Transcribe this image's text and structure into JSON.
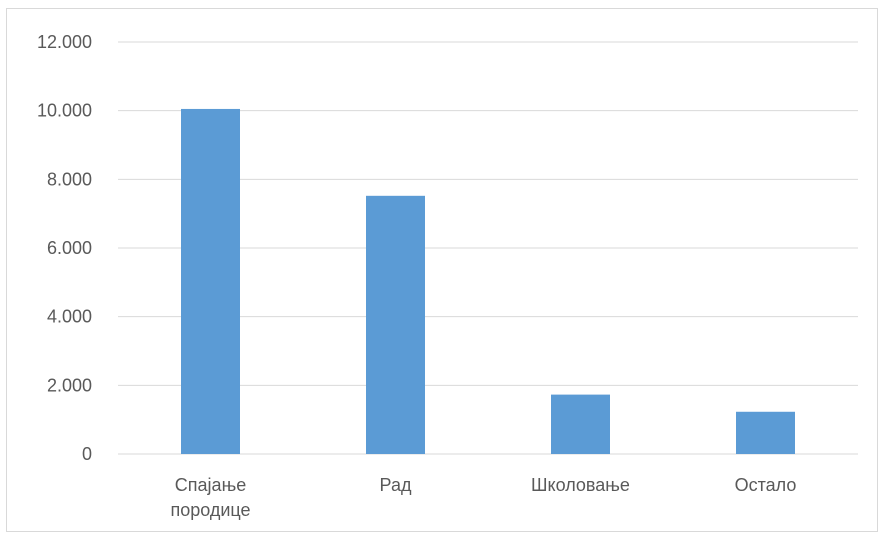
{
  "chart_data": {
    "type": "bar",
    "categories": [
      "Спајање породице",
      "Рад",
      "Школовање",
      "Остало"
    ],
    "category_lines": [
      [
        "Спајање",
        "породице"
      ],
      [
        "Рад"
      ],
      [
        "Школовање"
      ],
      [
        "Остало"
      ]
    ],
    "values": [
      10050,
      7520,
      1730,
      1230
    ],
    "ylim": [
      0,
      12000
    ],
    "yticks": [
      0,
      2000,
      4000,
      6000,
      8000,
      10000,
      12000
    ],
    "ytick_labels": [
      "0",
      "2.000",
      "4.000",
      "6.000",
      "8.000",
      "10.000",
      "12.000"
    ],
    "grid": true,
    "bar_color": "#5b9bd5",
    "grid_color": "#d9d9d9",
    "title": "",
    "xlabel": "",
    "ylabel": ""
  }
}
